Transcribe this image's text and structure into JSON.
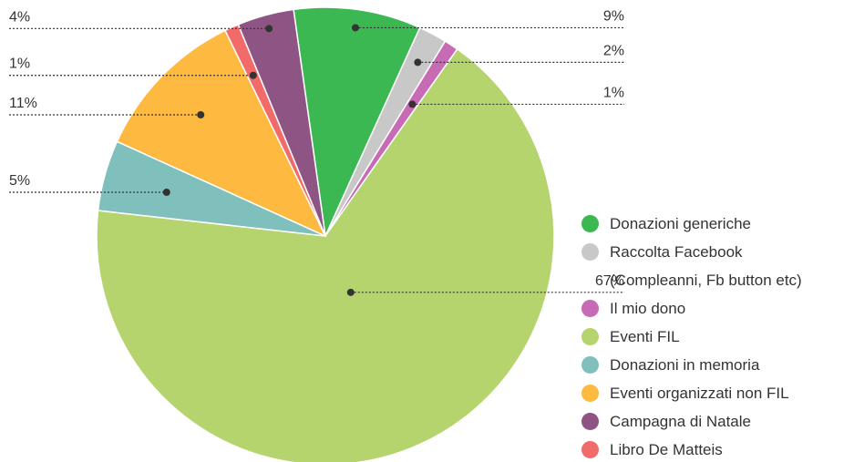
{
  "chart_data": {
    "type": "pie",
    "categories": [
      "Donazioni generiche",
      "Raccolta Facebook\n(Compleanni, Fb button etc)",
      "Il mio dono",
      "Eventi FIL",
      "Donazioni in memoria",
      "Eventi organizzati non FIL",
      "Libro De Matteis",
      "Campagna di Natale"
    ],
    "values": [
      9,
      2,
      1,
      67,
      5,
      11,
      1,
      4
    ],
    "value_labels": [
      "9%",
      "2%",
      "1%",
      "67%",
      "5%",
      "11%",
      "1%",
      "4%"
    ],
    "colors": [
      "#3cb853",
      "#c8c8c8",
      "#c86bb5",
      "#b5d46e",
      "#7fc0bd",
      "#fdb940",
      "#f26b6b",
      "#8e5484"
    ],
    "legend": "right"
  }
}
